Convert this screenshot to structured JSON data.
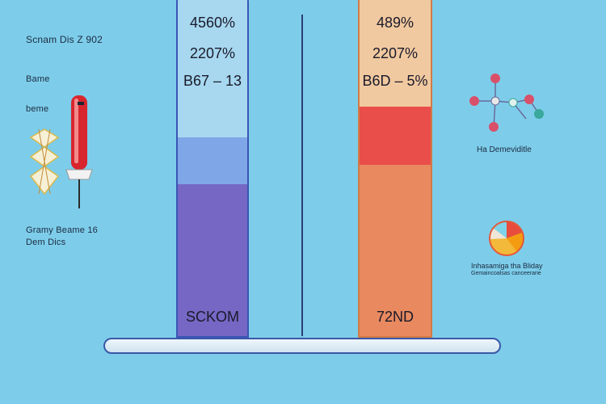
{
  "left_panel": {
    "title": "Scnam Dis Z 902",
    "label_1": "Bame",
    "label_2": "beme",
    "caption_line_1": "Gramy Beame 16",
    "caption_line_2": "Dem Dics"
  },
  "left_tube": {
    "line_1": "4560%",
    "line_2": "2207%",
    "line_3": "B67 – 13",
    "bottom_label": "SCKOM",
    "colors": {
      "top": "#a7d8f0",
      "middle": "#7fa6e6",
      "bottom": "#7567c3"
    }
  },
  "right_tube": {
    "line_1": "489%",
    "line_2": "2207%",
    "line_3": "B6D – 5%",
    "bottom_label": "72ND",
    "colors": {
      "top": "#f1c9a0",
      "middle": "#e94e4a",
      "bottom": "#e8895f"
    }
  },
  "right_panel": {
    "molecule_caption": "Ha Demeviditle",
    "pie_caption_line_1": "Inhasamiga tha Bliday",
    "pie_caption_line_2": "Gemaincoalsas canceerarie"
  }
}
